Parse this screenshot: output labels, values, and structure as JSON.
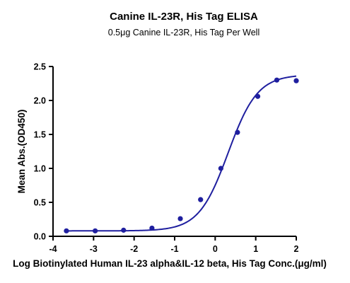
{
  "chart_data": {
    "type": "scatter",
    "title": "Canine IL-23R, His Tag ELISA",
    "subtitle": "0.5μg Canine IL-23R, His Tag Per Well",
    "xlabel": "Log Biotinylated Human IL-23 alpha&IL-12 beta, His Tag Conc.(μg/ml)",
    "ylabel": "Mean Abs.(OD450)",
    "xlim": [
      -4,
      2
    ],
    "ylim": [
      0,
      2.5
    ],
    "x_ticks": [
      "-4",
      "-3",
      "-2",
      "-1",
      "0",
      "1",
      "2"
    ],
    "y_ticks": [
      "0.0",
      "0.5",
      "1.0",
      "1.5",
      "2.0",
      "2.5"
    ],
    "grid": false,
    "legend": "none",
    "colors": {
      "series": "#1f1f9f",
      "axis": "#000000"
    },
    "series": [
      {
        "points": [
          {
            "x": -3.67,
            "y": 0.08
          },
          {
            "x": -2.96,
            "y": 0.08
          },
          {
            "x": -2.26,
            "y": 0.09
          },
          {
            "x": -1.56,
            "y": 0.12
          },
          {
            "x": -0.86,
            "y": 0.26
          },
          {
            "x": -0.36,
            "y": 0.54
          },
          {
            "x": 0.14,
            "y": 1.0
          },
          {
            "x": 0.55,
            "y": 1.53
          },
          {
            "x": 1.05,
            "y": 2.06
          },
          {
            "x": 1.52,
            "y": 2.3
          },
          {
            "x": 2.0,
            "y": 2.29
          }
        ],
        "fit": {
          "model": "4PL",
          "bottom": 0.08,
          "top": 2.38,
          "log_ec50": 0.32,
          "hill_slope": 1.2,
          "x_range": [
            -3.67,
            2.0
          ]
        }
      }
    ]
  }
}
